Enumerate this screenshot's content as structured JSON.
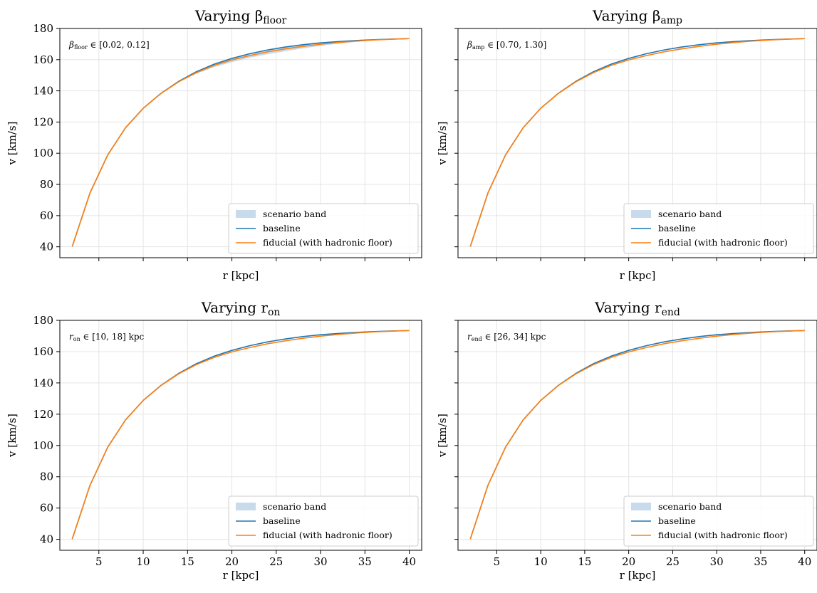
{
  "chart_data": [
    {
      "type": "line",
      "title": "Varying β",
      "title_subscript": "floor",
      "xlabel": "r [kpc]",
      "ylabel": "v [km/s]",
      "annotation": {
        "symbol": "β",
        "subscript": "floor",
        "text": " ∈ [0.02, 0.12]"
      },
      "xlim": [
        0.6,
        41.4
      ],
      "ylim": [
        33,
        180
      ],
      "xticks": [],
      "yticks": [
        40,
        60,
        80,
        100,
        120,
        140,
        160,
        180
      ],
      "grid": true,
      "legend_position": "lower-right",
      "legend": [
        "scenario band",
        "baseline",
        "fiducial (with hadronic floor)"
      ],
      "x": [
        2,
        4,
        6,
        8,
        10,
        12,
        14,
        16,
        18,
        20,
        22,
        24,
        26,
        28,
        30,
        32,
        34,
        36,
        38,
        40
      ],
      "band": {
        "lower": [
          40.2,
          74.5,
          98.9,
          116.3,
          128.8,
          138.2,
          145.5,
          151.0,
          155.2,
          158.4,
          161.2,
          163.5,
          165.4,
          167.2,
          168.8,
          170.3,
          171.4,
          172.4,
          173.0,
          173.4
        ],
        "upper": [
          40.2,
          74.5,
          98.9,
          116.3,
          128.8,
          138.4,
          146.1,
          152.3,
          157.1,
          160.8,
          163.8,
          166.2,
          168.1,
          169.6,
          170.8,
          171.6,
          172.3,
          172.8,
          173.2,
          173.5
        ]
      },
      "series": [
        {
          "name": "baseline",
          "values": [
            40.2,
            74.5,
            98.9,
            116.3,
            128.8,
            138.4,
            146.1,
            152.3,
            157.1,
            160.8,
            163.8,
            166.2,
            168.1,
            169.6,
            170.8,
            171.6,
            172.3,
            172.8,
            173.2,
            173.5
          ]
        },
        {
          "name": "fiducial (with hadronic floor)",
          "values": [
            40.2,
            74.5,
            98.9,
            116.3,
            128.8,
            138.3,
            145.8,
            151.7,
            156.3,
            159.8,
            162.6,
            165.0,
            166.9,
            168.5,
            169.9,
            171.0,
            171.9,
            172.6,
            173.1,
            173.5
          ]
        }
      ]
    },
    {
      "type": "line",
      "title": "Varying β",
      "title_subscript": "amp",
      "xlabel": "r [kpc]",
      "ylabel": "v [km/s]",
      "annotation": {
        "symbol": "β",
        "subscript": "amp",
        "text": " ∈ [0.70, 1.30]"
      },
      "xlim": [
        0.6,
        41.4
      ],
      "ylim": [
        33,
        180
      ],
      "xticks": [],
      "yticks": [],
      "grid": true,
      "legend_position": "lower-right",
      "legend": [
        "scenario band",
        "baseline",
        "fiducial (with hadronic floor)"
      ],
      "x": [
        2,
        4,
        6,
        8,
        10,
        12,
        14,
        16,
        18,
        20,
        22,
        24,
        26,
        28,
        30,
        32,
        34,
        36,
        38,
        40
      ],
      "band": {
        "lower": [
          40.2,
          74.5,
          98.9,
          116.3,
          128.8,
          138.2,
          145.6,
          151.4,
          156.0,
          159.5,
          162.3,
          164.7,
          166.6,
          168.3,
          169.7,
          170.9,
          171.8,
          172.5,
          173.1,
          173.5
        ],
        "upper": [
          40.2,
          74.5,
          98.9,
          116.3,
          128.8,
          138.4,
          146.0,
          152.1,
          156.6,
          160.1,
          163.0,
          165.4,
          167.3,
          168.9,
          170.3,
          171.3,
          172.1,
          172.7,
          173.2,
          173.5
        ]
      },
      "series": [
        {
          "name": "baseline",
          "values": [
            40.2,
            74.5,
            98.9,
            116.3,
            128.8,
            138.4,
            146.1,
            152.3,
            157.1,
            160.8,
            163.8,
            166.2,
            168.1,
            169.6,
            170.8,
            171.6,
            172.3,
            172.8,
            173.2,
            173.5
          ]
        },
        {
          "name": "fiducial (with hadronic floor)",
          "values": [
            40.2,
            74.5,
            98.9,
            116.3,
            128.8,
            138.3,
            145.8,
            151.7,
            156.3,
            159.8,
            162.6,
            165.0,
            166.9,
            168.5,
            169.9,
            171.0,
            171.9,
            172.6,
            173.1,
            173.5
          ]
        }
      ]
    },
    {
      "type": "line",
      "title": "Varying r",
      "title_subscript": "on",
      "xlabel": "r [kpc]",
      "ylabel": "v [km/s]",
      "annotation": {
        "symbol": "r",
        "subscript": "on",
        "text": " ∈ [10, 18] kpc"
      },
      "xlim": [
        0.6,
        41.4
      ],
      "ylim": [
        33,
        180
      ],
      "xticks": [
        5,
        10,
        15,
        20,
        25,
        30,
        35,
        40
      ],
      "yticks": [
        40,
        60,
        80,
        100,
        120,
        140,
        160,
        180
      ],
      "grid": true,
      "legend_position": "lower-right",
      "legend": [
        "scenario band",
        "baseline",
        "fiducial (with hadronic floor)"
      ],
      "x": [
        2,
        4,
        6,
        8,
        10,
        12,
        14,
        16,
        18,
        20,
        22,
        24,
        26,
        28,
        30,
        32,
        34,
        36,
        38,
        40
      ],
      "band": {
        "lower": [
          40.2,
          74.5,
          98.9,
          116.3,
          128.8,
          138.3,
          145.7,
          151.5,
          156.1,
          159.6,
          162.5,
          164.8,
          166.7,
          168.4,
          169.8,
          171.0,
          171.8,
          172.5,
          173.1,
          173.5
        ],
        "upper": [
          40.2,
          74.5,
          98.9,
          116.3,
          128.8,
          138.4,
          146.0,
          152.0,
          156.5,
          160.0,
          162.8,
          165.2,
          167.1,
          168.7,
          170.0,
          171.1,
          172.0,
          172.7,
          173.2,
          173.5
        ]
      },
      "series": [
        {
          "name": "baseline",
          "values": [
            40.2,
            74.5,
            98.9,
            116.3,
            128.8,
            138.4,
            146.1,
            152.3,
            157.1,
            160.8,
            163.8,
            166.2,
            168.1,
            169.6,
            170.8,
            171.6,
            172.3,
            172.8,
            173.2,
            173.5
          ]
        },
        {
          "name": "fiducial (with hadronic floor)",
          "values": [
            40.2,
            74.5,
            98.9,
            116.3,
            128.8,
            138.3,
            145.8,
            151.7,
            156.3,
            159.8,
            162.6,
            165.0,
            166.9,
            168.5,
            169.9,
            171.0,
            171.9,
            172.6,
            173.1,
            173.5
          ]
        }
      ]
    },
    {
      "type": "line",
      "title": "Varying r",
      "title_subscript": "end",
      "xlabel": "r [kpc]",
      "ylabel": "v [km/s]",
      "annotation": {
        "symbol": "r",
        "subscript": "end",
        "text": " ∈ [26, 34] kpc"
      },
      "xlim": [
        0.6,
        41.4
      ],
      "ylim": [
        33,
        180
      ],
      "xticks": [
        5,
        10,
        15,
        20,
        25,
        30,
        35,
        40
      ],
      "yticks": [],
      "grid": true,
      "legend_position": "lower-right",
      "legend": [
        "scenario band",
        "baseline",
        "fiducial (with hadronic floor)"
      ],
      "x": [
        2,
        4,
        6,
        8,
        10,
        12,
        14,
        16,
        18,
        20,
        22,
        24,
        26,
        28,
        30,
        32,
        34,
        36,
        38,
        40
      ],
      "band": {
        "lower": [
          40.2,
          74.5,
          98.9,
          116.3,
          128.8,
          138.3,
          145.8,
          151.7,
          156.3,
          159.8,
          162.6,
          165.0,
          166.9,
          168.5,
          169.8,
          170.9,
          171.8,
          172.5,
          173.1,
          173.5
        ],
        "upper": [
          40.2,
          74.5,
          98.9,
          116.3,
          128.8,
          138.3,
          145.8,
          151.7,
          156.3,
          159.8,
          162.6,
          165.0,
          166.9,
          168.6,
          170.0,
          171.1,
          171.9,
          172.6,
          173.1,
          173.5
        ]
      },
      "series": [
        {
          "name": "baseline",
          "values": [
            40.2,
            74.5,
            98.9,
            116.3,
            128.8,
            138.4,
            146.1,
            152.3,
            157.1,
            160.8,
            163.8,
            166.2,
            168.1,
            169.6,
            170.8,
            171.6,
            172.3,
            172.8,
            173.2,
            173.5
          ]
        },
        {
          "name": "fiducial (with hadronic floor)",
          "values": [
            40.2,
            74.5,
            98.9,
            116.3,
            128.8,
            138.3,
            145.8,
            151.7,
            156.3,
            159.8,
            162.6,
            165.0,
            166.9,
            168.5,
            169.9,
            171.0,
            171.9,
            172.6,
            173.1,
            173.5
          ]
        }
      ]
    }
  ],
  "colors": {
    "baseline": "#1f77b4",
    "fiducial": "#ff7f0e",
    "band": "#b6cfe6",
    "grid": "#e5e5e5",
    "axes": "#000000"
  }
}
